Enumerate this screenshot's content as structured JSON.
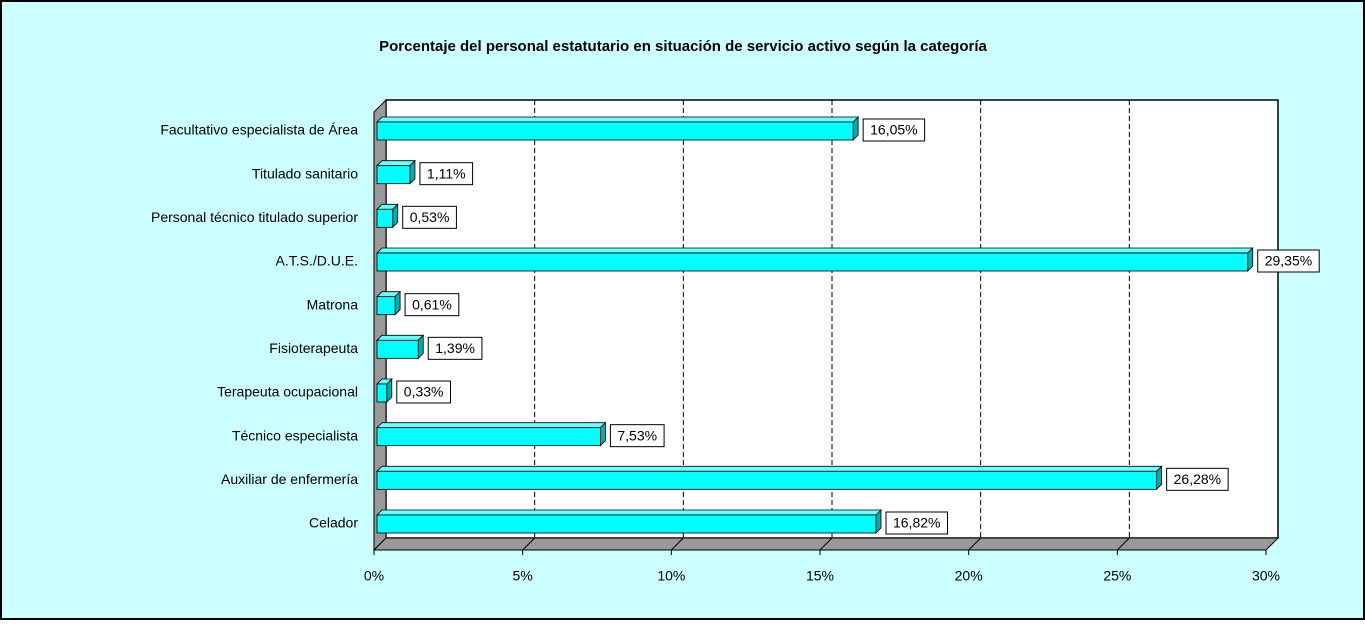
{
  "chart_data": {
    "type": "bar",
    "orientation": "horizontal",
    "title": "Porcentaje del personal estatutario en situación de servicio activo según la categoría",
    "categories": [
      "Facultativo especialista de Área",
      "Titulado sanitario",
      "Personal técnico titulado superior",
      "A.T.S./D.U.E.",
      "Matrona",
      "Fisioterapeuta",
      "Terapeuta ocupacional",
      "Técnico especialista",
      "Auxiliar de enfermería",
      "Celador"
    ],
    "values": [
      16.05,
      1.11,
      0.53,
      29.35,
      0.61,
      1.39,
      0.33,
      7.53,
      26.28,
      16.82
    ],
    "value_labels": [
      "16,05%",
      "1,11%",
      "0,53%",
      "29,35%",
      "0,61%",
      "1,39%",
      "0,33%",
      "7,53%",
      "26,28%",
      "16,82%"
    ],
    "color": "#00ffff",
    "xlim": [
      0,
      30
    ],
    "xticks": [
      {
        "value": 0,
        "label": "0%"
      },
      {
        "value": 5,
        "label": "5%"
      },
      {
        "value": 10,
        "label": "10%"
      },
      {
        "value": 15,
        "label": "15%"
      },
      {
        "value": 20,
        "label": "20%"
      },
      {
        "value": 25,
        "label": "25%"
      },
      {
        "value": 30,
        "label": "30%"
      }
    ],
    "grid": true
  }
}
